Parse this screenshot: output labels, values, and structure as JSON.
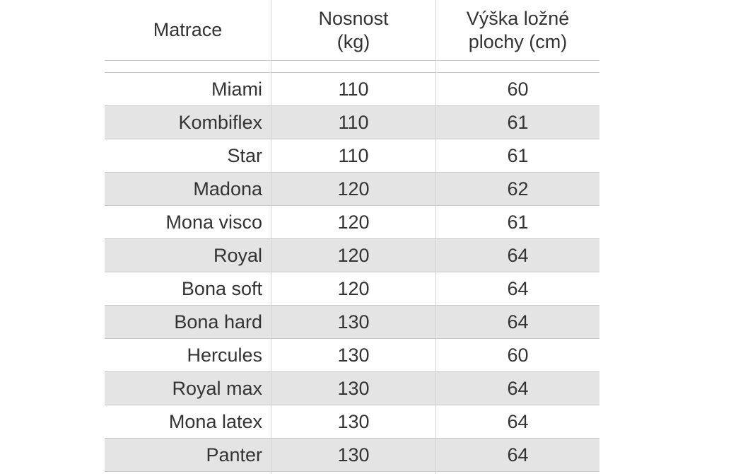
{
  "colors": {
    "row_alt_background": "#e4e4e4",
    "border": "#c9c9c9",
    "text": "#333333"
  },
  "table": {
    "columns": [
      {
        "label": "Matrace",
        "lines": [
          "Matrace"
        ]
      },
      {
        "label": "Nosnost (kg)",
        "lines": [
          "Nosnost",
          "(kg)"
        ]
      },
      {
        "label": "Výška ložné plochy (cm)",
        "lines": [
          "Výška ložné",
          "plochy (cm)"
        ]
      }
    ],
    "rows": [
      {
        "name": "Miami",
        "capacity_kg": "110",
        "height_cm": "60"
      },
      {
        "name": "Kombiflex",
        "capacity_kg": "110",
        "height_cm": "61"
      },
      {
        "name": "Star",
        "capacity_kg": "110",
        "height_cm": "61"
      },
      {
        "name": "Madona",
        "capacity_kg": "120",
        "height_cm": "62"
      },
      {
        "name": "Mona visco",
        "capacity_kg": "120",
        "height_cm": "61"
      },
      {
        "name": "Royal",
        "capacity_kg": "120",
        "height_cm": "64"
      },
      {
        "name": "Bona soft",
        "capacity_kg": "120",
        "height_cm": "64"
      },
      {
        "name": "Bona hard",
        "capacity_kg": "130",
        "height_cm": "64"
      },
      {
        "name": "Hercules",
        "capacity_kg": "130",
        "height_cm": "60"
      },
      {
        "name": "Royal max",
        "capacity_kg": "130",
        "height_cm": "64"
      },
      {
        "name": "Mona latex",
        "capacity_kg": "130",
        "height_cm": "64"
      },
      {
        "name": "Panter",
        "capacity_kg": "130",
        "height_cm": "64"
      }
    ]
  },
  "chart_data": {
    "type": "table",
    "title": "",
    "columns": [
      "Matrace",
      "Nosnost (kg)",
      "Výška ložné plochy (cm)"
    ],
    "rows": [
      [
        "Miami",
        110,
        60
      ],
      [
        "Kombiflex",
        110,
        61
      ],
      [
        "Star",
        110,
        61
      ],
      [
        "Madona",
        120,
        62
      ],
      [
        "Mona visco",
        120,
        61
      ],
      [
        "Royal",
        120,
        64
      ],
      [
        "Bona soft",
        120,
        64
      ],
      [
        "Bona hard",
        130,
        64
      ],
      [
        "Hercules",
        130,
        60
      ],
      [
        "Royal max",
        130,
        64
      ],
      [
        "Mona latex",
        130,
        64
      ],
      [
        "Panter",
        130,
        64
      ]
    ],
    "layout": {
      "zebra_stripes": true,
      "first_column_align": "right",
      "number_align": "center"
    }
  }
}
